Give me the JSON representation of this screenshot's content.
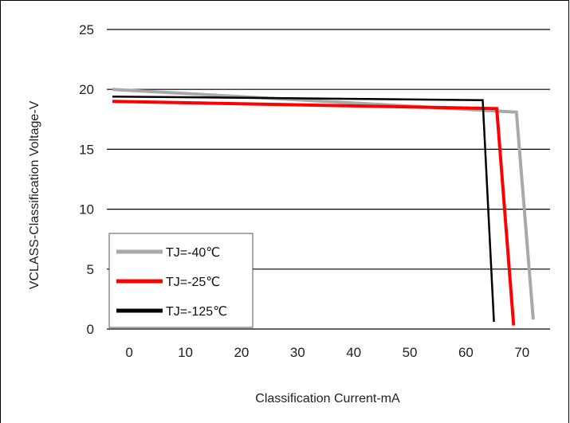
{
  "chart_data": {
    "type": "line",
    "xlabel": "Classification Current-mA",
    "ylabel": "VCLASS-Classification Voltage-V",
    "xlim": [
      -4,
      75
    ],
    "ylim": [
      0,
      25
    ],
    "x_ticks": [
      0,
      10,
      20,
      30,
      40,
      50,
      60,
      70
    ],
    "y_ticks": [
      0,
      5,
      10,
      15,
      20,
      25
    ],
    "grid": "horizontal",
    "legend_position": "bottom-left",
    "series": [
      {
        "name": "TJ=-40℃",
        "color": "#a9a9a9",
        "points": [
          [
            -3,
            20.0
          ],
          [
            69,
            18.1
          ],
          [
            72,
            0.8
          ]
        ]
      },
      {
        "name": "TJ=-25℃",
        "color": "#ff0000",
        "points": [
          [
            -3,
            19.0
          ],
          [
            65.5,
            18.4
          ],
          [
            68.5,
            0.3
          ]
        ]
      },
      {
        "name": "TJ=-125℃",
        "color": "#000000",
        "points": [
          [
            -3,
            19.4
          ],
          [
            63,
            19.1
          ],
          [
            65,
            0.6
          ]
        ]
      }
    ]
  }
}
